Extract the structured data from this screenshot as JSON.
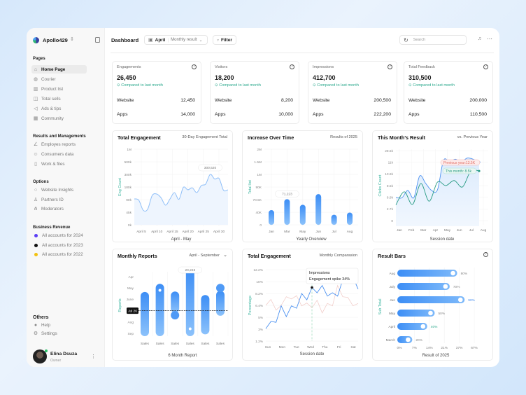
{
  "app": {
    "name": "Apollo429"
  },
  "sidebar": {
    "sections": [
      {
        "title": "Pages",
        "items": [
          {
            "label": "Home Page",
            "icon": "home-icon",
            "active": true
          },
          {
            "label": "Courier",
            "icon": "courier-icon"
          },
          {
            "label": "Product list",
            "icon": "product-icon"
          },
          {
            "label": "Total sells",
            "icon": "bag-icon"
          },
          {
            "label": "Ads & tips",
            "icon": "megaphone-icon"
          },
          {
            "label": "Community",
            "icon": "community-icon"
          }
        ]
      },
      {
        "title": "Results and Managements",
        "items": [
          {
            "label": "Employes reports",
            "icon": "chart-icon"
          },
          {
            "label": "Consumers data",
            "icon": "users-icon"
          },
          {
            "label": "Work & files",
            "icon": "file-icon"
          }
        ]
      },
      {
        "title": "Options",
        "items": [
          {
            "label": "Website Insights",
            "icon": "search-icon"
          },
          {
            "label": "Partners ID",
            "icon": "user-icon"
          },
          {
            "label": "Moderators",
            "icon": "hierarchy-icon"
          }
        ]
      },
      {
        "title": "Business Revenue",
        "items": [
          {
            "label": "All accounts for 2024",
            "color": "#5b3df5"
          },
          {
            "label": "All accounts for 2023",
            "color": "#111111"
          },
          {
            "label": "All accounts for 2022",
            "color": "#f2c110"
          }
        ]
      }
    ],
    "others": {
      "title": "Others",
      "items": [
        {
          "label": "Help",
          "icon": "help-icon"
        },
        {
          "label": "Settings",
          "icon": "gear-icon"
        }
      ]
    },
    "user": {
      "name": "Elina Dsuza",
      "role": "Owner"
    }
  },
  "header": {
    "title": "Dashboard",
    "month": "April",
    "result_select": "Monthly result",
    "filter": "Filter",
    "search_placeholder": "Search"
  },
  "stats": [
    {
      "title": "Engagements",
      "value": "26,450",
      "compare": "Compared to last month",
      "website": "12,450",
      "apps": "14,000"
    },
    {
      "title": "Visitors",
      "value": "18,200",
      "compare": "Compared to last month",
      "website": "8,200",
      "apps": "10,000"
    },
    {
      "title": "Impressions",
      "value": "412,700",
      "compare": "Compared to last month",
      "website": "200,500",
      "apps": "222,200"
    },
    {
      "title": "Total Feedback",
      "value": "310,500",
      "compare": "Compared to last month",
      "website": "200,000",
      "apps": "110,500"
    }
  ],
  "labels": {
    "website": "Website",
    "apps": "Apps"
  },
  "chart_data": [
    {
      "type": "area",
      "title": "Total Engagement",
      "subtitle": "30-Day Engagement Total",
      "ylabel": "Eng Count",
      "xlabel": "April - May",
      "yticks": [
        "0k",
        "45k",
        "90k",
        "180k",
        "300k",
        "500k",
        "1M"
      ],
      "ytick_values": [
        0,
        45,
        90,
        180,
        300,
        500,
        1000
      ],
      "xticks": [
        "April 5",
        "April 10",
        "April 15",
        "April 20",
        "April 25",
        "April 30"
      ],
      "values_k": [
        95,
        88,
        52,
        56,
        119,
        130,
        103,
        70,
        95,
        140,
        92,
        178,
        160,
        174,
        140,
        193,
        208,
        300,
        256,
        261,
        156,
        160
      ],
      "tooltip": "300,520",
      "tooltip_index": 17,
      "color": "#8fbff8"
    },
    {
      "type": "bar",
      "title": "Increase Over Time",
      "subtitle": "Results of 2025",
      "ylabel": "Total list",
      "xlabel": "Yearly Overview",
      "yticks": [
        "0",
        "40K",
        "70.5K",
        "90K",
        "1M",
        "1.5M",
        "2M"
      ],
      "ytick_values": [
        0,
        40,
        70.5,
        90,
        1000,
        1500,
        2000
      ],
      "categories": [
        "Jan",
        "Mar",
        "May",
        "Jun",
        "Jul",
        "Aug"
      ],
      "values_k": [
        45,
        71.223,
        58,
        79,
        32,
        39
      ],
      "tooltip": "71,223",
      "tooltip_index": 1,
      "color": "#3d8ef5"
    },
    {
      "type": "line",
      "title": "This Month's Result",
      "subtitle": "vs. Previous Year",
      "ylabel": "Clicks Count",
      "xlabel": "Session date",
      "yticks": [
        "0",
        "2.7k",
        "6.8k",
        "8.5k",
        "10.8k",
        "11k",
        "28.5k"
      ],
      "ytick_values": [
        0,
        2.7,
        6.8,
        8.5,
        10.8,
        11,
        28.5
      ],
      "xticks": [
        "Jan",
        "Feb",
        "Mar",
        "Apr",
        "May",
        "Jun",
        "Jul",
        "Aug"
      ],
      "series": [
        {
          "name": "Previous year",
          "label": "Previous year:13.5K",
          "color": "#4a90f0",
          "values_k": [
            6.8,
            6.6,
            7.8,
            6.6,
            10.4,
            8.95,
            7.8,
            7.9,
            13.6,
            11.7,
            15.5,
            11.7,
            17.3,
            15.5,
            11
          ]
        },
        {
          "name": "This month",
          "label": "This month: 8.5k",
          "color": "#2a9c85",
          "values_k": [
            4.1,
            7.6,
            4.3,
            8.9,
            5.4,
            9.2,
            8.5,
            9.5,
            8.3,
            10.85,
            10.85
          ]
        }
      ]
    },
    {
      "type": "range-bar",
      "title": "Monthly Reports",
      "subtitle": "April - September",
      "xlabel": "6 Month Report",
      "ylabel": "Reports",
      "ycategories": [
        "Apr",
        "May",
        "June",
        "Jul",
        "Aug",
        "Sep"
      ],
      "marker": "Jul 26",
      "bars": [
        {
          "label": "Sales",
          "from": 1.6,
          "to": 5
        },
        {
          "label": "Sales",
          "from": 0.88,
          "to": 5,
          "dot": 1.2
        },
        {
          "label": "Sales",
          "from": 1.56,
          "to": 2.94,
          "circle": 3.4
        },
        {
          "label": "Sales",
          "from": -0.6,
          "to": 5,
          "dot": 4.6,
          "tooltip": "20,223"
        },
        {
          "label": "Sales",
          "from": 1.87,
          "to": 4.84
        },
        {
          "label": "Sales",
          "from": 1.5,
          "to": 3.2,
          "circle": 1.0
        }
      ]
    },
    {
      "type": "line",
      "title": "Total Engagement",
      "subtitle": "Monthly Comparasion",
      "ylabel": "Percentage",
      "xlabel": "Session date",
      "yticks": [
        "1.2%",
        "3%",
        "5%",
        "6.4%",
        "8.2%",
        "10%",
        "12.2%"
      ],
      "ytick_values": [
        1.2,
        3,
        5,
        6.4,
        8.2,
        10,
        12.2
      ],
      "xticks": [
        "Sun",
        "Mon",
        "Tue",
        "Wed",
        "Thu",
        "Fri",
        "Sat"
      ],
      "series": [
        {
          "name": "Impressions",
          "color": "#4a90f0",
          "values": [
            3.08,
            4.3,
            4.15,
            6.34,
            5.08,
            6.34,
            6.06,
            8.2,
            7.23,
            9.1,
            8.3,
            9.4,
            7.8,
            8.3,
            7.8,
            10.35,
            9.75,
            10.8,
            8.85
          ]
        },
        {
          "color": "#f0c8c4",
          "values": [
            6.4,
            7.3,
            5.84,
            6.4,
            7.7,
            7.37,
            7.85,
            6.34,
            6.75,
            6.12,
            7.17,
            5.5,
            6.7,
            6.34,
            9.4,
            7.7,
            7.6,
            6.34,
            6.7
          ]
        }
      ],
      "tooltip": {
        "title": "Impressions",
        "text": "Engagement spike 34%",
        "index": 9
      }
    },
    {
      "type": "hbar",
      "title": "Result Bars",
      "xlabel": "Result of 2025",
      "ylabel": "Sub Total",
      "categories": [
        "Aug",
        "July",
        "Jun",
        "May",
        "April",
        "March"
      ],
      "values": [
        80,
        70,
        90,
        50,
        40,
        20
      ],
      "labels": [
        "80%",
        "70%",
        "90%",
        "50%",
        "40%",
        "20%"
      ],
      "xticks": [
        "0%",
        "7%",
        "14%",
        "21%",
        "37%",
        "67%"
      ],
      "color": "#3d8ef5"
    }
  ]
}
